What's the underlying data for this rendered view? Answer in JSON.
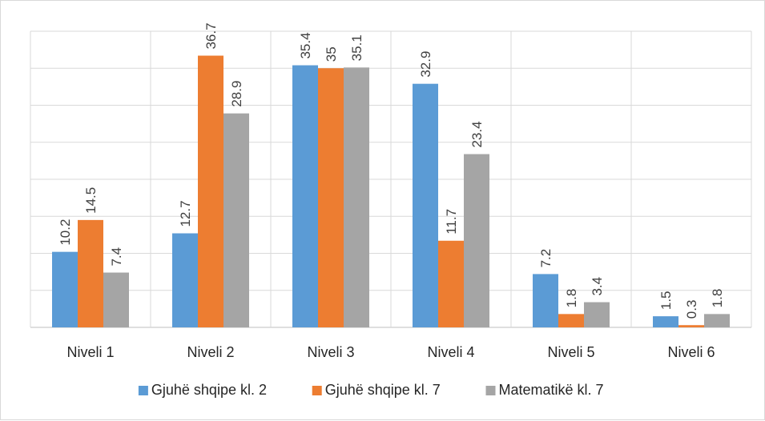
{
  "chart_data": {
    "type": "bar",
    "categories": [
      "Niveli 1",
      "Niveli 2",
      "Niveli 3",
      "Niveli 4",
      "Niveli 5",
      "Niveli 6"
    ],
    "series": [
      {
        "name": "Gjuhë shqipe kl. 2",
        "color": "#5b9bd5",
        "values": [
          10.2,
          12.7,
          35.4,
          32.9,
          7.2,
          1.5
        ],
        "labels": [
          "10.2",
          "12.7",
          "35.4",
          "32.9",
          "7.2",
          "1.5"
        ]
      },
      {
        "name": "Gjuhë shqipe kl. 7",
        "color": "#ed7d31",
        "values": [
          14.5,
          36.7,
          35,
          11.7,
          1.8,
          0.3
        ],
        "labels": [
          "14.5",
          "36.7",
          "35",
          "11.7",
          "1.8",
          "0.3"
        ]
      },
      {
        "name": "Matematikë kl. 7",
        "color": "#a5a5a5",
        "values": [
          7.4,
          28.9,
          35.1,
          23.4,
          3.4,
          1.8
        ],
        "labels": [
          "7.4",
          "28.9",
          "35.1",
          "23.4",
          "3.4",
          "1.8"
        ]
      }
    ],
    "ylim": [
      0,
      40
    ],
    "grid": true,
    "legend": "bottom",
    "title": "",
    "xlabel": "",
    "ylabel": ""
  }
}
